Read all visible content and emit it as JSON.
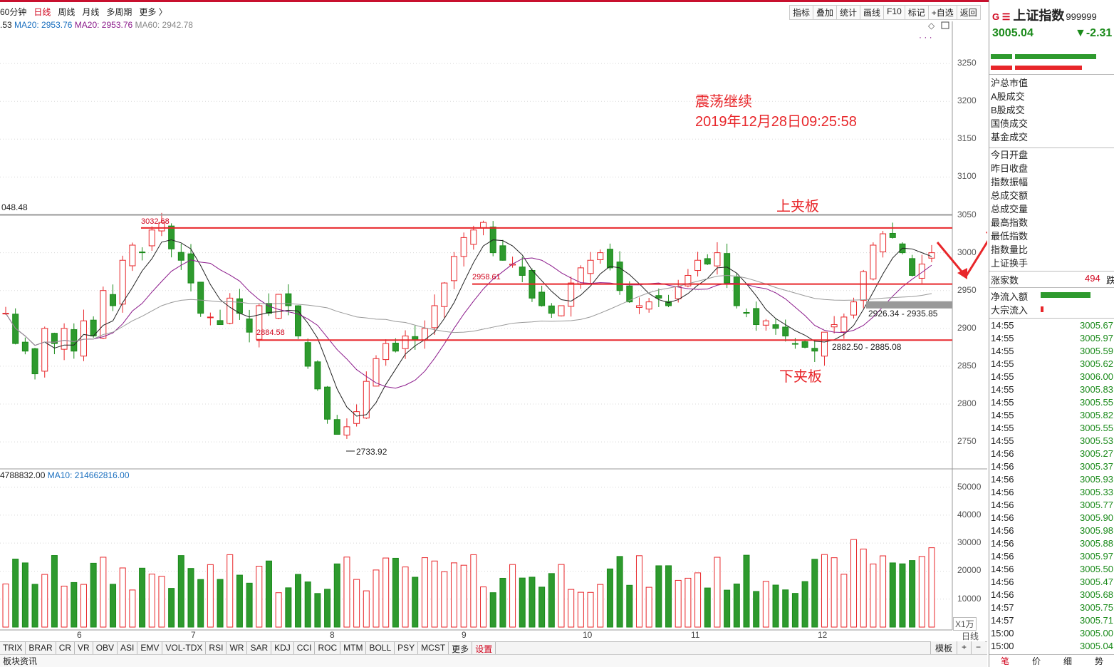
{
  "toolbar": {
    "periods": [
      "60分钟",
      "日线",
      "周线",
      "月线",
      "多周期",
      "更多 〉"
    ],
    "active_period": "日线",
    "tools": [
      "指标",
      "叠加",
      "统计",
      "画线",
      "F10",
      "标记",
      "+自选",
      "返回"
    ]
  },
  "ma_legend": {
    "prefix": ".53",
    "ma10": "MA20: 2953.76",
    "ma20": "MA20: 2953.76",
    "ma60": "MA60: 2942.78",
    "colors": {
      "ma10": "#1a6fbf",
      "ma20": "#8b1a8b",
      "ma60": "#888888"
    }
  },
  "volume_legend": {
    "v1": "4788832.00",
    "v2": "MA10: 214662816.00"
  },
  "annotations": {
    "title1": "震荡继续",
    "title2": "2019年12月28日09:25:58",
    "upper": "上夹板",
    "lower": "下夹板"
  },
  "chart_data": {
    "type": "candlestick",
    "price_axis": {
      "ticks": [
        3250,
        3200,
        3150,
        3100,
        3050,
        3000,
        2950,
        2900,
        2850,
        2800,
        2750
      ],
      "range": [
        2720,
        3300
      ]
    },
    "volume_axis": {
      "ticks": [
        50000,
        40000,
        30000,
        20000,
        10000
      ],
      "unit": "X1万"
    },
    "x_labels": [
      "6",
      "7",
      "8",
      "9",
      "10",
      "11",
      "12"
    ],
    "price_labels": {
      "left_value": "048.48",
      "high_1": "3032.68",
      "mid_1": "2958.61",
      "low_1": "2884.58",
      "low_2": "2733.92",
      "range_upper": "2926.34 - 2935.85",
      "range_lower": "2882.50 - 2885.08"
    },
    "levels": {
      "upper_plate": 3032.68,
      "middle": 2958.61,
      "lower_plate": 2884.58,
      "gray_line": 3050.0,
      "gray_band": [
        2926.34,
        2935.85
      ]
    }
  },
  "bottom_tabs": [
    "TRIX",
    "BRAR",
    "CR",
    "VR",
    "OBV",
    "ASI",
    "EMV",
    "VOL-TDX",
    "RSI",
    "WR",
    "SAR",
    "KDJ",
    "CCI",
    "ROC",
    "MTM",
    "BOLL",
    "PSY",
    "MCST",
    "更多",
    "设置"
  ],
  "bottom_right": [
    "模板",
    "+",
    "−"
  ],
  "status_text": "板块资讯",
  "right_panel": {
    "g_mark": "G ☰",
    "name": "上证指数",
    "code": "999999",
    "price": "3005.04",
    "change": "▼-2.31",
    "stats1": [
      "沪总市值",
      "A股成交",
      "B股成交",
      "国债成交",
      "基金成交"
    ],
    "stats2": [
      "今日开盘",
      "昨日收盘",
      "指数振幅",
      "总成交额",
      "总成交量",
      "最高指数",
      "最低指数",
      "指数量比",
      "上证换手"
    ],
    "rise_label": "涨家数",
    "rise_value": "494",
    "rise_suffix": "跌",
    "net_inflow": "净流入额",
    "block_inflow": "大宗流入",
    "ticks": [
      [
        "14:55",
        "3005.67"
      ],
      [
        "14:55",
        "3005.97"
      ],
      [
        "14:55",
        "3005.59"
      ],
      [
        "14:55",
        "3005.62"
      ],
      [
        "14:55",
        "3006.00"
      ],
      [
        "14:55",
        "3005.83"
      ],
      [
        "14:55",
        "3005.55"
      ],
      [
        "14:55",
        "3005.82"
      ],
      [
        "14:55",
        "3005.55"
      ],
      [
        "14:55",
        "3005.53"
      ],
      [
        "14:56",
        "3005.27"
      ],
      [
        "14:56",
        "3005.37"
      ],
      [
        "14:56",
        "3005.93"
      ],
      [
        "14:56",
        "3005.33"
      ],
      [
        "14:56",
        "3005.77"
      ],
      [
        "14:56",
        "3005.90"
      ],
      [
        "14:56",
        "3005.98"
      ],
      [
        "14:56",
        "3005.88"
      ],
      [
        "14:56",
        "3005.97"
      ],
      [
        "14:56",
        "3005.50"
      ],
      [
        "14:56",
        "3005.47"
      ],
      [
        "14:56",
        "3005.68"
      ],
      [
        "14:57",
        "3005.75"
      ],
      [
        "14:57",
        "3005.71"
      ],
      [
        "15:00",
        "3005.00"
      ],
      [
        "15:00",
        "3005.04"
      ]
    ],
    "bottom_tabs": [
      "笔",
      "价",
      "细",
      "势"
    ]
  }
}
